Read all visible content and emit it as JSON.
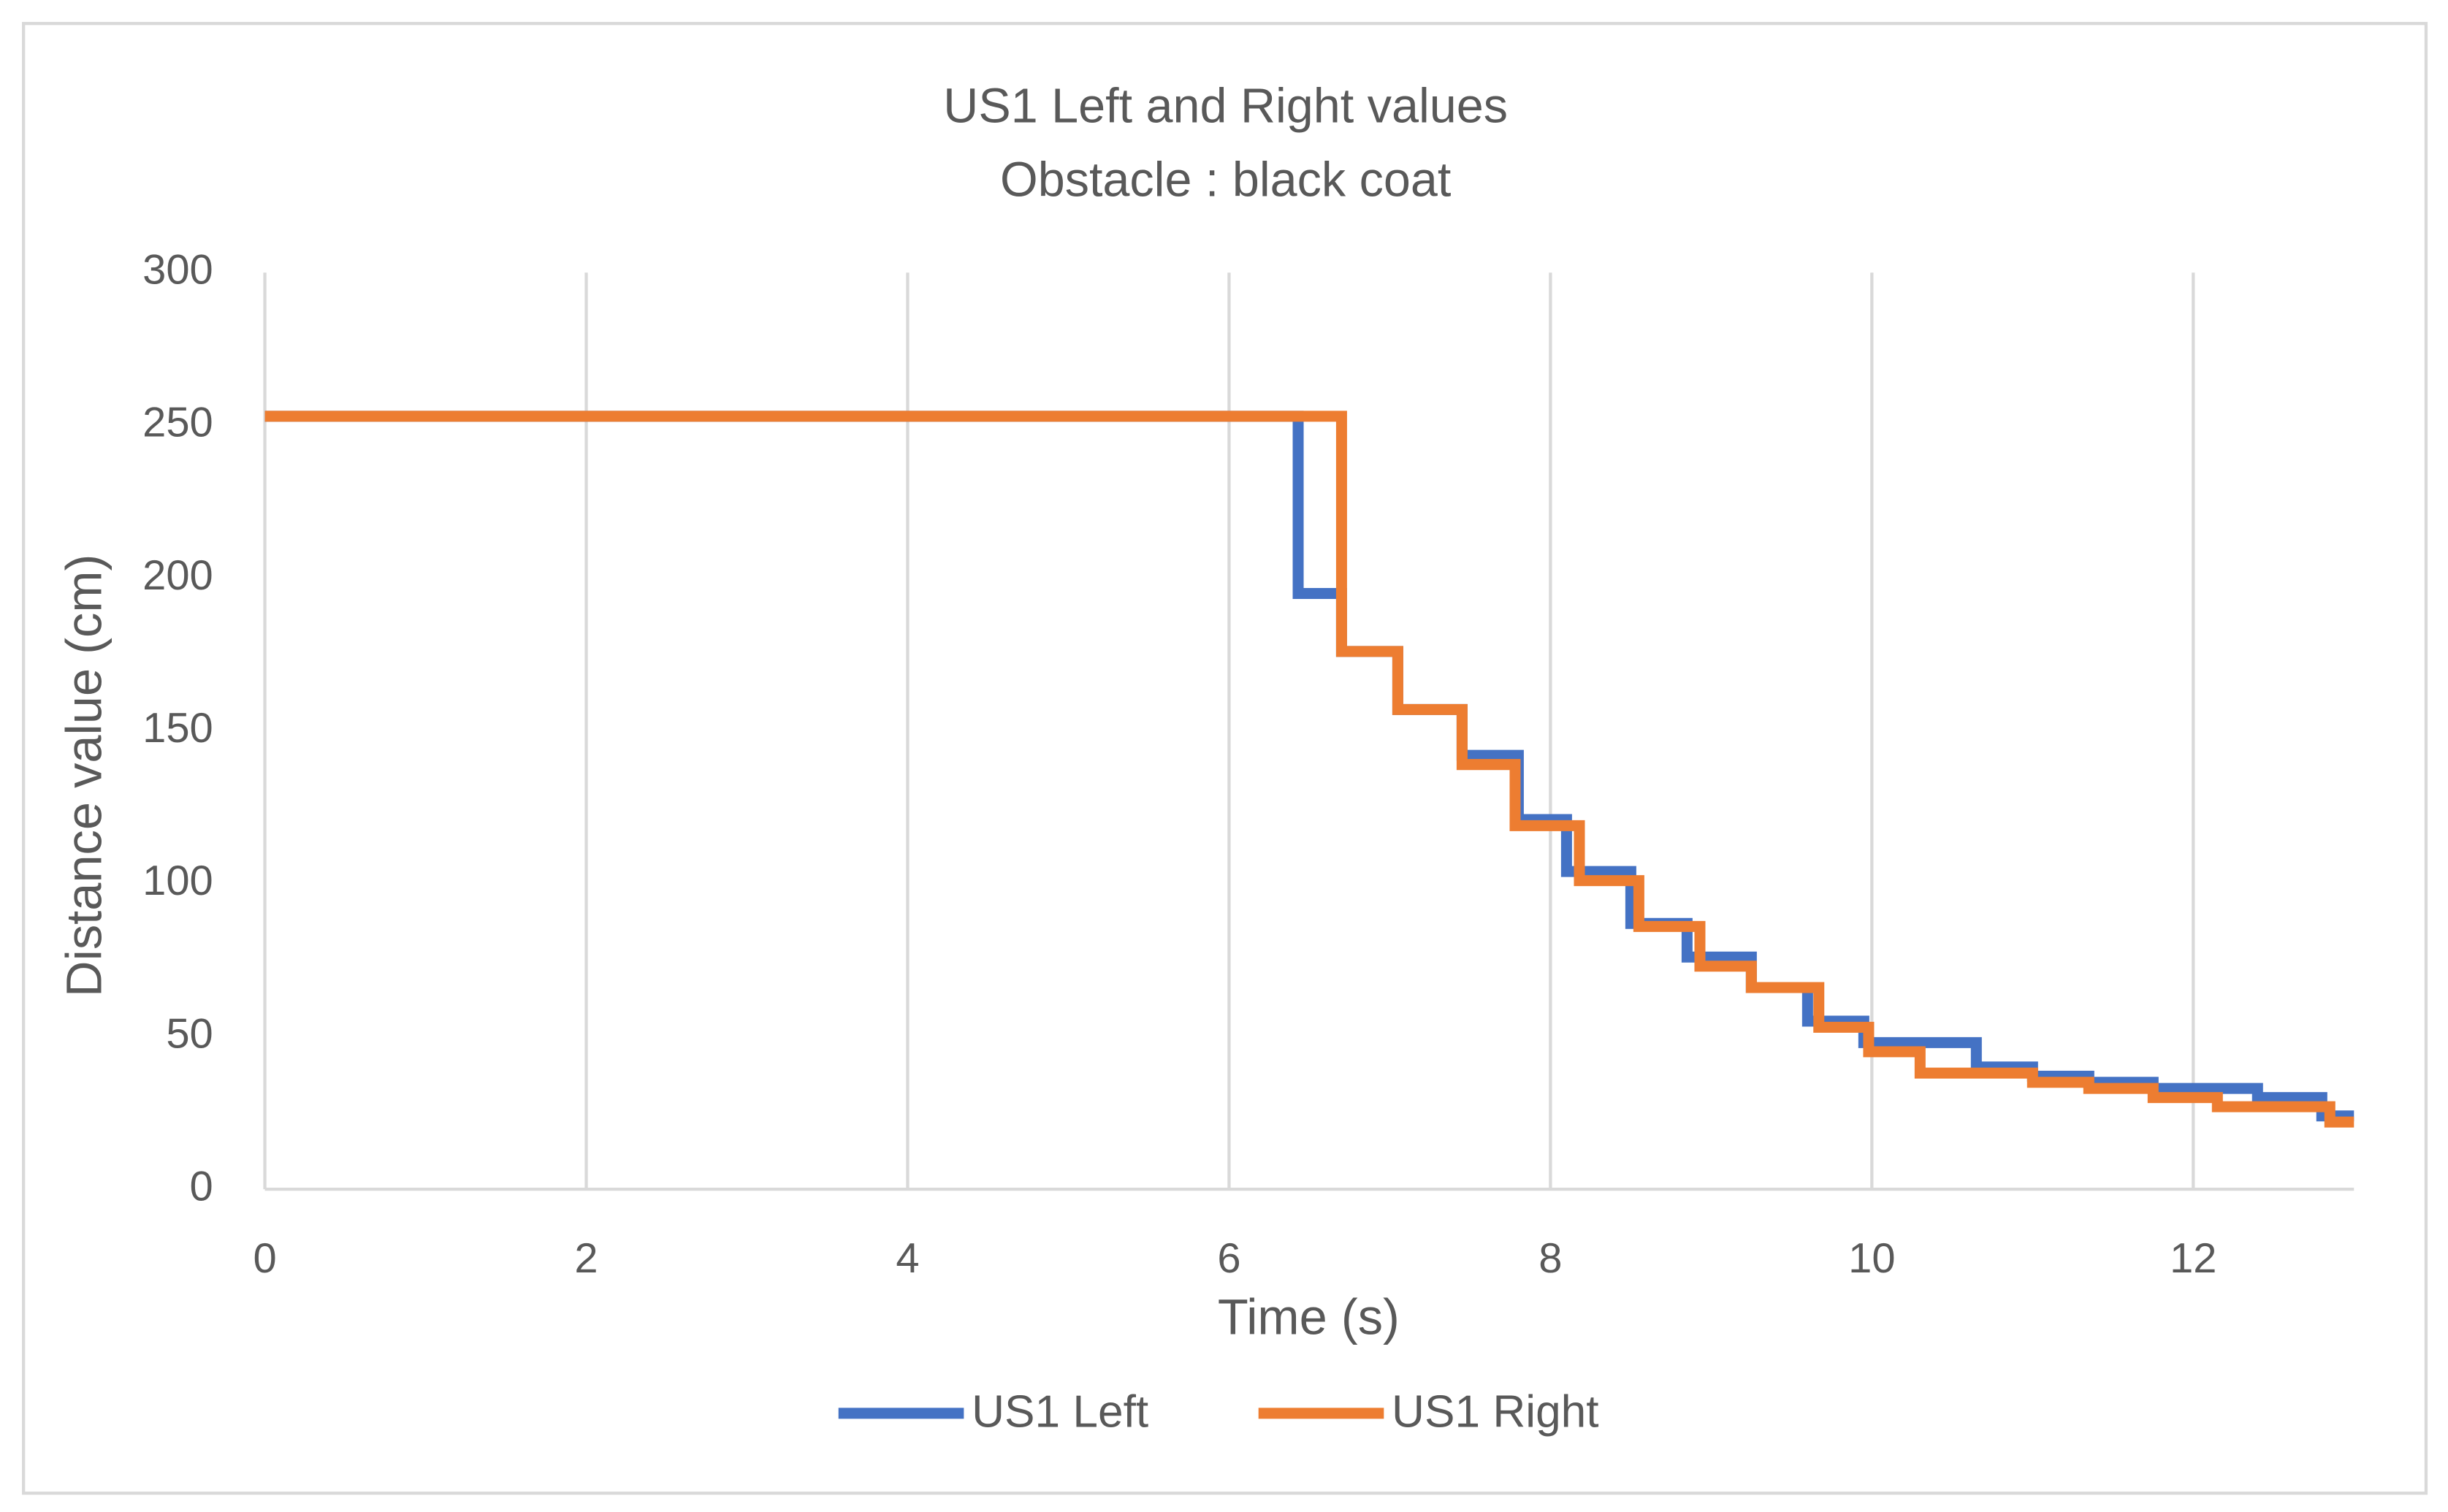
{
  "chart_data": {
    "type": "line",
    "title": "US1 Left and Right values",
    "subtitle": "Obstacle : black coat",
    "x_label": "Time (s)",
    "y_label": "Distance value (cm)",
    "xlim": [
      0,
      13
    ],
    "xticks": [
      0,
      2,
      4,
      6,
      8,
      10,
      12
    ],
    "ylim": [
      0,
      300
    ],
    "yticks": [
      0,
      50,
      100,
      150,
      200,
      250,
      300
    ],
    "grid": "x",
    "legend": "bottom",
    "series": [
      {
        "name": "US1 Left",
        "color": "#4472c4",
        "x": [
          0,
          6.43,
          6.43,
          6.7,
          6.7,
          7.05,
          7.05,
          7.45,
          7.45,
          7.8,
          7.8,
          8.1,
          8.1,
          8.5,
          8.5,
          8.85,
          8.85,
          9.25,
          9.25,
          9.6,
          9.6,
          9.95,
          9.95,
          10.65,
          10.65,
          11,
          11,
          11.35,
          11.35,
          11.75,
          11.75,
          12.4,
          12.4,
          12.8,
          12.8,
          13
        ],
        "values": [
          253,
          253,
          195,
          195,
          176,
          176,
          157,
          157,
          142,
          142,
          121,
          121,
          104,
          104,
          87,
          87,
          76,
          76,
          66,
          66,
          55,
          55,
          48,
          48,
          40,
          40,
          37,
          37,
          35,
          35,
          33,
          33,
          30,
          30,
          24,
          24
        ]
      },
      {
        "name": "US1 Right",
        "color": "#ed7d31",
        "x": [
          0,
          6.7,
          6.7,
          7.05,
          7.05,
          7.45,
          7.45,
          7.78,
          7.78,
          8.18,
          8.18,
          8.55,
          8.55,
          8.93,
          8.93,
          9.25,
          9.25,
          9.67,
          9.67,
          9.98,
          9.98,
          10.3,
          10.3,
          11,
          11,
          11.35,
          11.35,
          11.75,
          11.75,
          12.15,
          12.15,
          12.85,
          12.85,
          13
        ],
        "values": [
          253,
          253,
          176,
          176,
          157,
          157,
          139,
          139,
          119,
          119,
          101,
          101,
          86,
          86,
          73,
          73,
          66,
          66,
          53,
          53,
          45,
          45,
          38,
          38,
          35,
          35,
          33,
          33,
          30,
          30,
          27,
          27,
          22,
          22
        ]
      }
    ]
  }
}
